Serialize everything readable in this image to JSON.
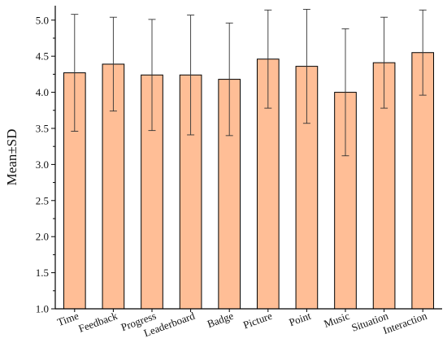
{
  "chart_data": {
    "type": "bar",
    "title": "",
    "xlabel": "",
    "ylabel": "Mean±SD",
    "ylim": [
      1.0,
      5.2
    ],
    "yticks": [
      1.0,
      1.5,
      2.0,
      2.5,
      3.0,
      3.5,
      4.0,
      4.5,
      5.0
    ],
    "ytick_labels": [
      "1.0",
      "1.5",
      "2.0",
      "2.5",
      "3.0",
      "3.5",
      "4.0",
      "4.5",
      "5.0"
    ],
    "categories": [
      "Time",
      "Feedback",
      "Progress",
      "Leaderboard",
      "Badge",
      "Picture",
      "Point",
      "Music",
      "Situation",
      "Interaction"
    ],
    "values": [
      4.27,
      4.39,
      4.24,
      4.24,
      4.18,
      4.46,
      4.36,
      4.0,
      4.41,
      4.55
    ],
    "sd": [
      0.81,
      0.65,
      0.77,
      0.83,
      0.78,
      0.68,
      0.79,
      0.88,
      0.63,
      0.59
    ],
    "grid": false,
    "legend": "none",
    "bar_color": "#ffbe96",
    "edge_color": "#000000"
  }
}
